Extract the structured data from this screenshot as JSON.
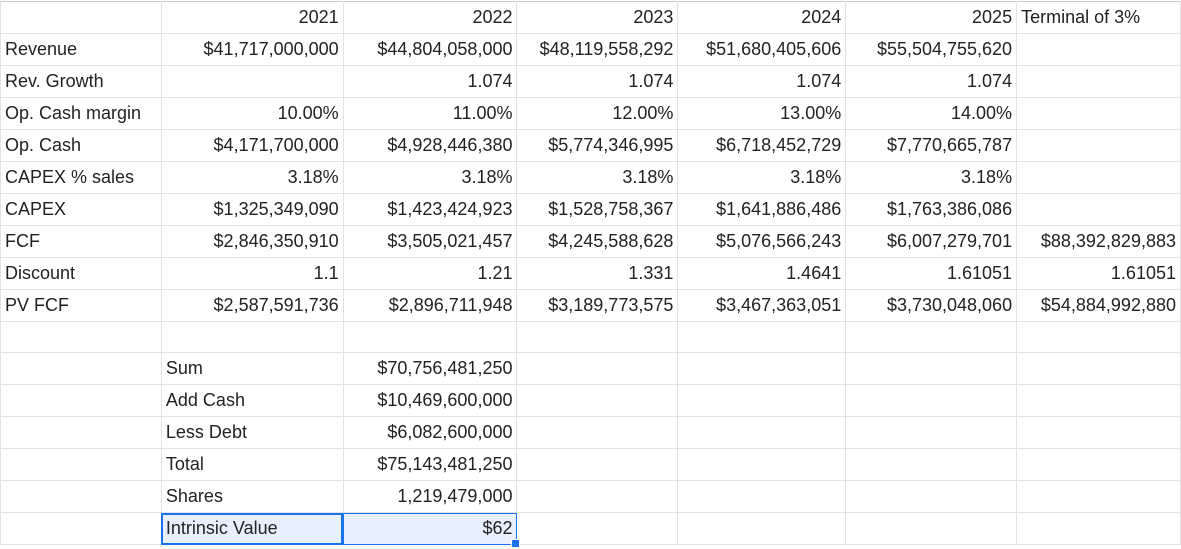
{
  "header": {
    "years": [
      "2021",
      "2022",
      "2023",
      "2024",
      "2025"
    ],
    "terminal": "Terminal of 3%"
  },
  "rows": [
    {
      "label": "Revenue",
      "values": [
        "$41,717,000,000",
        "$44,804,058,000",
        "$48,119,558,292",
        "$51,680,405,606",
        "$55,504,755,620",
        ""
      ]
    },
    {
      "label": "Rev. Growth",
      "values": [
        "",
        "1.074",
        "1.074",
        "1.074",
        "1.074",
        ""
      ]
    },
    {
      "label": "Op. Cash margin",
      "values": [
        "10.00%",
        "11.00%",
        "12.00%",
        "13.00%",
        "14.00%",
        ""
      ]
    },
    {
      "label": "Op. Cash",
      "values": [
        "$4,171,700,000",
        "$4,928,446,380",
        "$5,774,346,995",
        "$6,718,452,729",
        "$7,770,665,787",
        ""
      ]
    },
    {
      "label": "CAPEX % sales",
      "values": [
        "3.18%",
        "3.18%",
        "3.18%",
        "3.18%",
        "3.18%",
        ""
      ]
    },
    {
      "label": "CAPEX",
      "values": [
        "$1,325,349,090",
        "$1,423,424,923",
        "$1,528,758,367",
        "$1,641,886,486",
        "$1,763,386,086",
        ""
      ]
    },
    {
      "label": "FCF",
      "values": [
        "$2,846,350,910",
        "$3,505,021,457",
        "$4,245,588,628",
        "$5,076,566,243",
        "$6,007,279,701",
        "$88,392,829,883"
      ]
    },
    {
      "label": "Discount",
      "values": [
        "1.1",
        "1.21",
        "1.331",
        "1.4641",
        "1.61051",
        "1.61051"
      ]
    },
    {
      "label": "PV FCF",
      "values": [
        "$2,587,591,736",
        "$2,896,711,948",
        "$3,189,773,575",
        "$3,467,363,051",
        "$3,730,048,060",
        "$54,884,992,880"
      ]
    }
  ],
  "summary": [
    {
      "label": "Sum",
      "value": "$70,756,481,250"
    },
    {
      "label": "Add Cash",
      "value": "$10,469,600,000"
    },
    {
      "label": "Less Debt",
      "value": "$6,082,600,000"
    },
    {
      "label": "Total",
      "value": "$75,143,481,250"
    },
    {
      "label": "Shares",
      "value": "1,219,479,000"
    },
    {
      "label": "Intrinsic Value",
      "value": "$62"
    }
  ]
}
